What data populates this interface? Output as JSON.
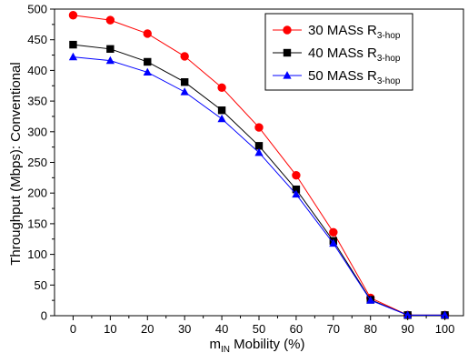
{
  "chart_data": {
    "type": "line",
    "xlabel": {
      "main": "m",
      "sub": "IN",
      "rest": " Mobility (%)"
    },
    "ylabel": "Throughput (Mbps): Conventional",
    "xlim": [
      -5,
      105
    ],
    "ylim": [
      0,
      500
    ],
    "x_ticks": [
      0,
      10,
      20,
      30,
      40,
      50,
      60,
      70,
      80,
      90,
      100
    ],
    "y_ticks": [
      0,
      50,
      100,
      150,
      200,
      250,
      300,
      350,
      400,
      450,
      500
    ],
    "grid": false,
    "legend_position": "top-right",
    "x": [
      0,
      10,
      20,
      30,
      40,
      50,
      60,
      70,
      80,
      90,
      100
    ],
    "series": [
      {
        "name": "30 MASs R",
        "name_sub": "3-hop",
        "color": "#ff0000",
        "marker": "circle",
        "values": [
          490,
          482,
          460,
          423,
          372,
          307,
          229,
          136,
          29,
          1,
          1
        ]
      },
      {
        "name": "40 MASs R",
        "name_sub": "3-hop",
        "color": "#000000",
        "marker": "square",
        "values": [
          442,
          435,
          414,
          381,
          335,
          277,
          206,
          122,
          26,
          1,
          1
        ]
      },
      {
        "name": "50 MASs R",
        "name_sub": "3-hop",
        "color": "#0000ff",
        "marker": "triangle",
        "values": [
          422,
          416,
          397,
          365,
          321,
          266,
          198,
          118,
          25,
          1,
          1
        ]
      }
    ]
  }
}
